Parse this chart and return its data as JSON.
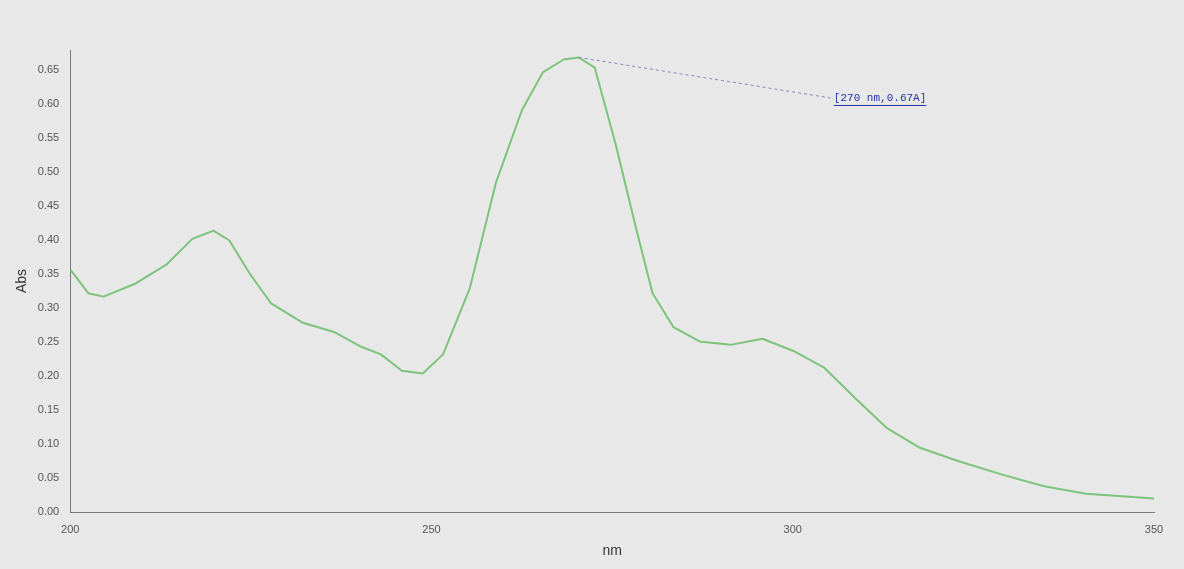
{
  "chart_data": {
    "type": "line",
    "xlabel": "nm",
    "ylabel": "Abs",
    "x": [
      200,
      202.5,
      204.6,
      209,
      213.3,
      216.9,
      219.8,
      222,
      224.9,
      227.8,
      232.1,
      236.5,
      240.1,
      243,
      245.9,
      248.8,
      251.6,
      255.3,
      258.9,
      262.5,
      265.4,
      268.3,
      270.4,
      272.6,
      275.5,
      278.4,
      280.6,
      283.5,
      287.1,
      291.4,
      295.8,
      300.1,
      304.4,
      308.8,
      313.1,
      317.5,
      323.2,
      329,
      334.8,
      340.6,
      350
    ],
    "series": [
      {
        "color": "#7cc47c",
        "values": [
          0.357,
          0.322,
          0.317,
          0.336,
          0.364,
          0.402,
          0.414,
          0.4,
          0.35,
          0.307,
          0.279,
          0.265,
          0.244,
          0.232,
          0.208,
          0.204,
          0.232,
          0.329,
          0.484,
          0.591,
          0.647,
          0.666,
          0.669,
          0.654,
          0.541,
          0.414,
          0.322,
          0.272,
          0.251,
          0.246,
          0.255,
          0.237,
          0.212,
          0.166,
          0.123,
          0.095,
          0.074,
          0.055,
          0.038,
          0.027,
          0.02
        ]
      }
    ],
    "xlim": [
      200,
      350
    ],
    "xticks": [
      200,
      250,
      300,
      350
    ],
    "ylim": [
      0,
      0.68
    ],
    "yticks": [
      {
        "value": 0,
        "label": "0.00"
      },
      {
        "value": 0.05,
        "label": "0.05"
      },
      {
        "value": 0.1,
        "label": "0.10"
      },
      {
        "value": 0.15,
        "label": "0.15"
      },
      {
        "value": 0.2,
        "label": "0.20"
      },
      {
        "value": 0.25,
        "label": "0.25"
      },
      {
        "value": 0.3,
        "label": "0.30"
      },
      {
        "value": 0.35,
        "label": "0.35"
      },
      {
        "value": 0.4,
        "label": "0.40"
      },
      {
        "value": 0.45,
        "label": "0.45"
      },
      {
        "value": 0.5,
        "label": "0.50"
      },
      {
        "value": 0.55,
        "label": "0.55"
      },
      {
        "value": 0.6,
        "label": "0.60"
      },
      {
        "value": 0.65,
        "label": "0.65"
      }
    ],
    "annotations": [
      {
        "text": "[270 nm,0.67A]",
        "x": 270.4,
        "y": 0.669
      }
    ],
    "grid": false,
    "legend": false,
    "marker": "none",
    "line_style": "solid"
  }
}
